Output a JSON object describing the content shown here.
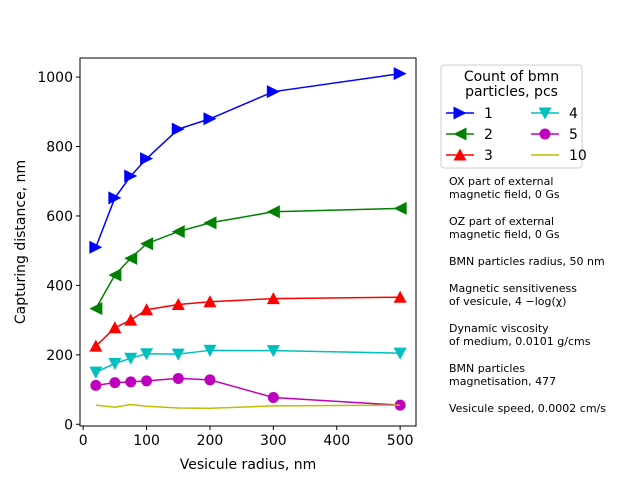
{
  "chart_data": {
    "type": "line",
    "xlabel": "Vesicule radius,  nm",
    "ylabel": "Capturing distance,  nm",
    "xlim": [
      -5,
      525
    ],
    "ylim": [
      -5,
      1055
    ],
    "xticks": [
      0,
      100,
      200,
      300,
      400,
      500
    ],
    "yticks": [
      0,
      200,
      400,
      600,
      800,
      1000
    ],
    "grid": false,
    "legend": {
      "title_line1": "Count of bmn",
      "title_line2": "particles,   pcs",
      "placement": "upper-right-outside",
      "columns": 2
    },
    "series": [
      {
        "name": "1",
        "color": "#0000ff",
        "marker": "triangle-right",
        "x": [
          20,
          50,
          75,
          100,
          150,
          200,
          300,
          500
        ],
        "y": [
          510,
          652,
          715,
          765,
          850,
          880,
          958,
          1010
        ]
      },
      {
        "name": "2",
        "color": "#008000",
        "marker": "triangle-left",
        "x": [
          20,
          50,
          75,
          100,
          150,
          200,
          300,
          500
        ],
        "y": [
          333,
          430,
          478,
          520,
          555,
          580,
          612,
          622
        ]
      },
      {
        "name": "3",
        "color": "#ff0000",
        "marker": "triangle-up",
        "x": [
          20,
          50,
          75,
          100,
          150,
          200,
          300,
          500
        ],
        "y": [
          225,
          278,
          300,
          330,
          345,
          353,
          362,
          366
        ]
      },
      {
        "name": "4",
        "color": "#00bfbf",
        "marker": "triangle-down",
        "x": [
          20,
          50,
          75,
          100,
          150,
          200,
          300,
          500
        ],
        "y": [
          150,
          175,
          190,
          203,
          202,
          213,
          212,
          205
        ]
      },
      {
        "name": "5",
        "color": "#bf00bf",
        "marker": "circle",
        "x": [
          20,
          50,
          75,
          100,
          150,
          200,
          300,
          500
        ],
        "y": [
          112,
          120,
          122,
          125,
          132,
          128,
          77,
          55
        ]
      },
      {
        "name": "10",
        "color": "#bfbf00",
        "marker": "none",
        "x": [
          20,
          50,
          75,
          100,
          150,
          200,
          300,
          500
        ],
        "y": [
          55,
          49,
          57,
          52,
          47,
          46,
          53,
          55
        ]
      }
    ],
    "annotations": [
      {
        "lines": [
          "OX part of external",
          "magnetic field, 0 Gs"
        ]
      },
      {
        "lines": [
          "OZ part of external",
          "magnetic field, 0 Gs"
        ]
      },
      {
        "lines": [
          "BMN particles radius, 50 nm"
        ]
      },
      {
        "lines": [
          "Magnetic sensitiveness",
          "of vesicule, 4 −log(χ)"
        ]
      },
      {
        "lines": [
          "Dynamic viscosity",
          "of medium, 0.0101 g/cms"
        ]
      },
      {
        "lines": [
          "BMN particles",
          "magnetisation, 477"
        ]
      },
      {
        "lines": [
          "Vesicule speed, 0.0002 cm/s"
        ]
      }
    ]
  }
}
